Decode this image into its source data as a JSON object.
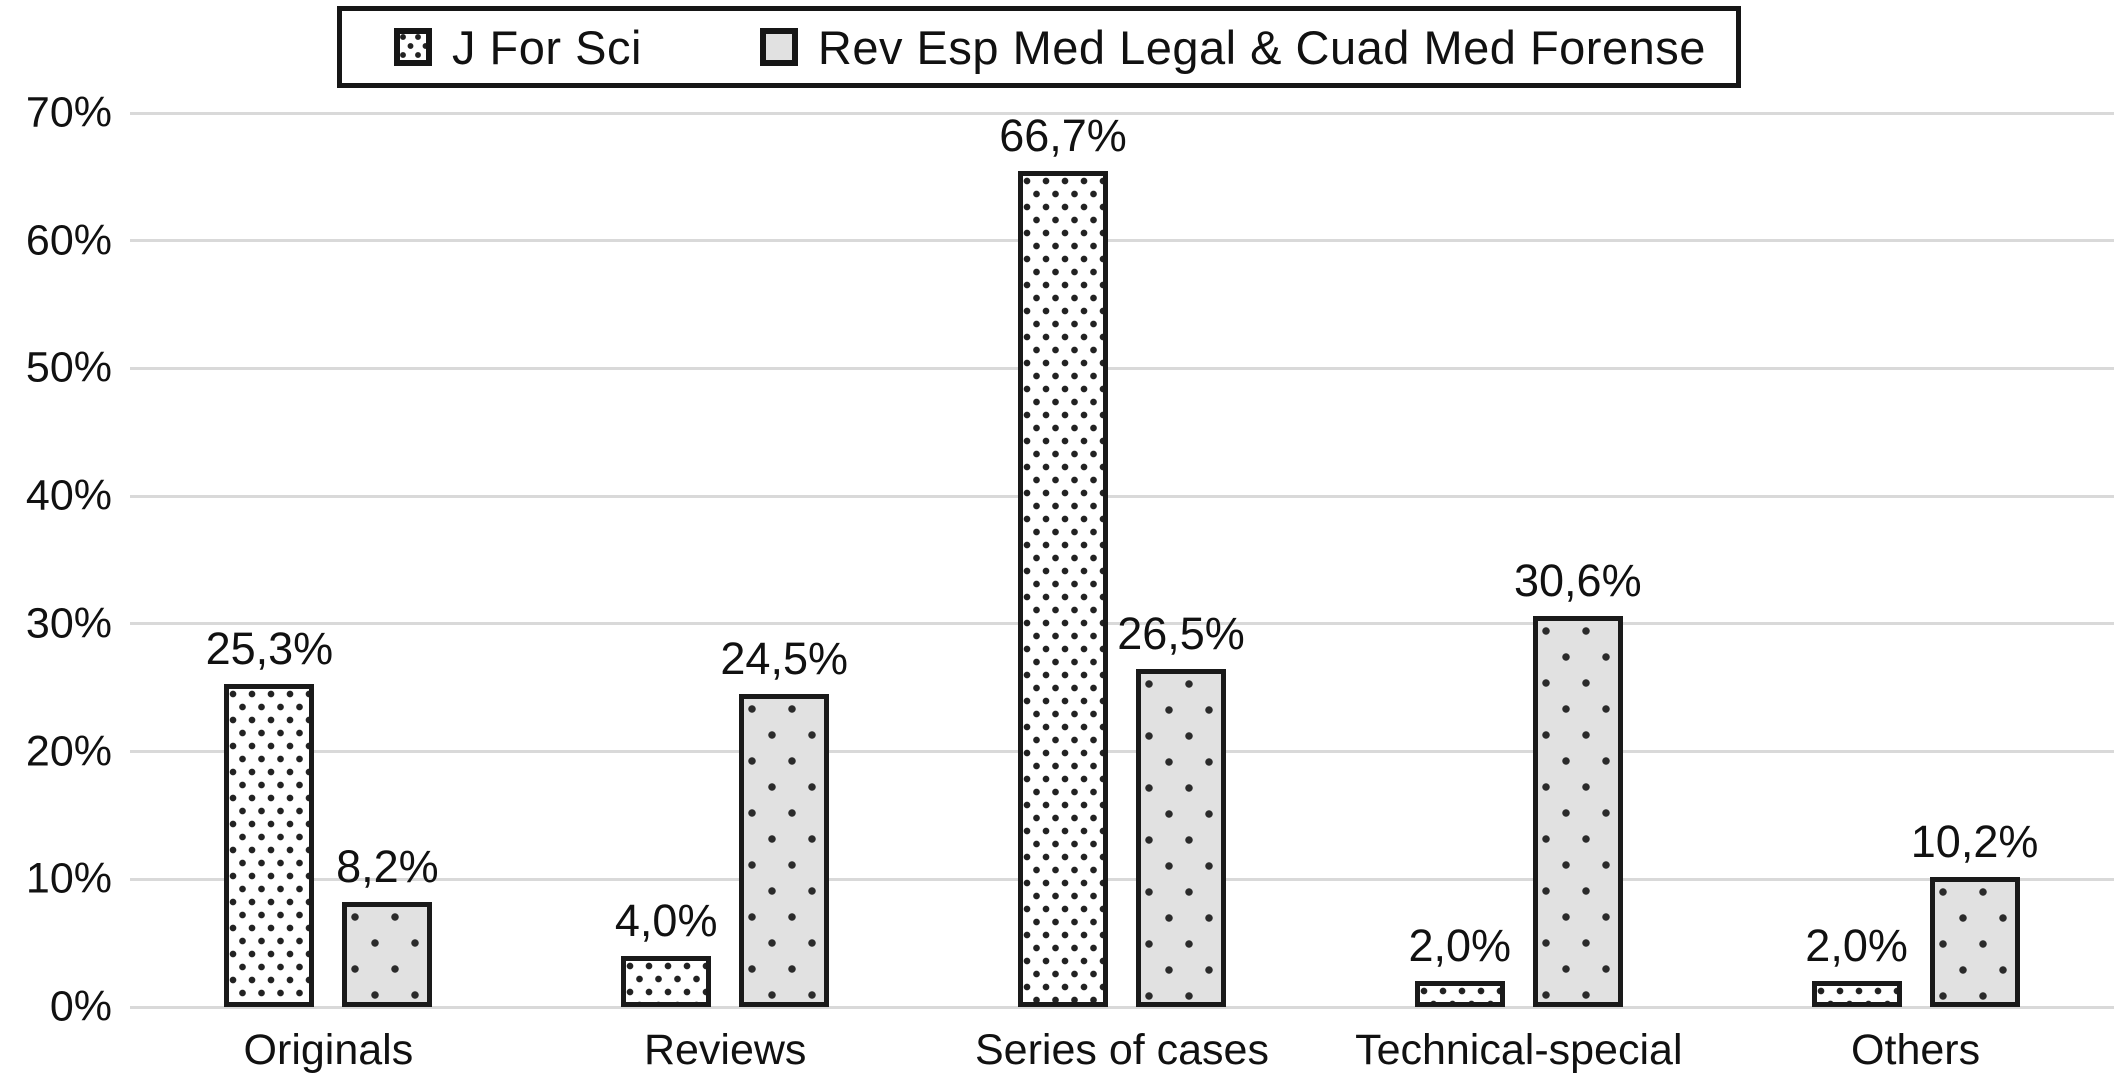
{
  "chart_data": {
    "type": "bar",
    "title": "",
    "xlabel": "",
    "ylabel": "",
    "ylim": [
      0,
      70
    ],
    "grid": true,
    "legend_position": "top-center",
    "yticks": [
      "0%",
      "10%",
      "20%",
      "30%",
      "40%",
      "50%",
      "60%",
      "70%"
    ],
    "categories": [
      "Originals",
      "Reviews",
      "Series of cases",
      "Technical-special",
      "Others"
    ],
    "series": [
      {
        "name": "J For Sci",
        "pattern": "dense-black-dots-on-white",
        "values": [
          25.3,
          4.0,
          66.7,
          2.0,
          2.0
        ],
        "labels": [
          "25,3%",
          "4,0%",
          "66,7%",
          "2,0%",
          "2,0%"
        ]
      },
      {
        "name": "Rev Esp Med Legal & Cuad Med Forense",
        "pattern": "sparse-black-dots-on-gray",
        "values": [
          8.2,
          24.5,
          26.5,
          30.6,
          10.2
        ],
        "labels": [
          "8,2%",
          "24,5%",
          "26,5%",
          "30,6%",
          "10,2%"
        ]
      }
    ],
    "colors": {
      "bar_border": "#1a1a1a",
      "gray_fill": "#e1e1e1",
      "white_fill": "#ffffff",
      "gridline": "#d9d9d9",
      "text": "#111111",
      "background": "#ffffff"
    }
  }
}
